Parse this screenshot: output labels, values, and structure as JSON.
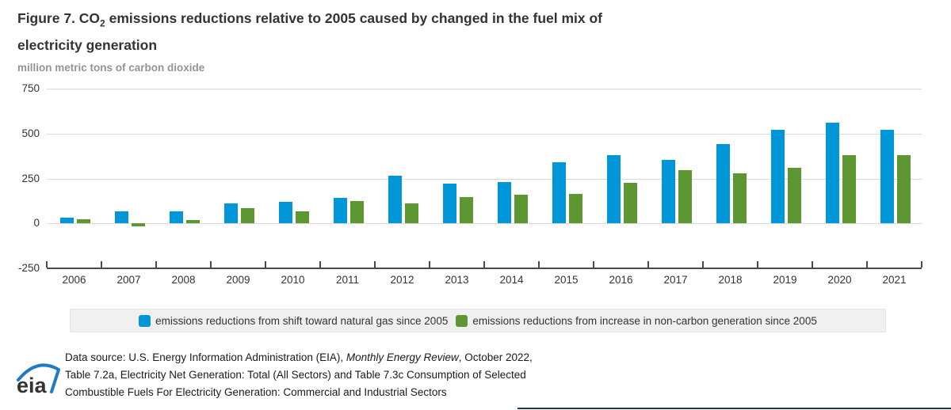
{
  "header": {
    "title_line1_pre": "Figure 7. CO",
    "title_sub": "2",
    "title_line1_post": " emissions reductions relative to 2005 caused by changed in the fuel mix of",
    "title_line2": "electricity generation",
    "units_label": "million metric tons of carbon dioxide"
  },
  "chart_data": {
    "type": "bar",
    "title": "Figure 7. CO2 emissions reductions relative to 2005 caused by changed in the fuel mix of electricity generation",
    "ylabel": "million metric tons of carbon dioxide",
    "xlabel": "",
    "categories": [
      "2006",
      "2007",
      "2008",
      "2009",
      "2010",
      "2011",
      "2012",
      "2013",
      "2014",
      "2015",
      "2016",
      "2017",
      "2018",
      "2019",
      "2020",
      "2021"
    ],
    "series": [
      {
        "name": "emissions reductions from shift toward natural gas since 2005",
        "color": "#0096D7",
        "values": [
          30,
          65,
          65,
          110,
          120,
          140,
          265,
          220,
          230,
          340,
          380,
          355,
          440,
          520,
          560,
          520
        ]
      },
      {
        "name": "emissions reductions from increase in non-carbon generation since 2005",
        "color": "#5D9732",
        "values": [
          25,
          -15,
          20,
          85,
          65,
          125,
          110,
          145,
          160,
          165,
          225,
          295,
          280,
          310,
          380,
          380
        ]
      }
    ],
    "ylim": [
      -250,
      750
    ],
    "yticks": [
      750,
      500,
      250,
      0,
      -250
    ],
    "grid": true,
    "legend_position": "bottom"
  },
  "footer": {
    "source_pre": "Data source: U.S. Energy Information Administration (EIA), ",
    "source_italic": "Monthly Energy Review",
    "source_post": ", October 2022,",
    "source_line2": "Table 7.2a, Electricity Net Generation: Total (All Sectors) and Table 7.3c Consumption of Selected",
    "source_line3": "Combustible Fuels For Electricity Generation: Commercial and Industrial Sectors",
    "logo_text": "eia"
  }
}
